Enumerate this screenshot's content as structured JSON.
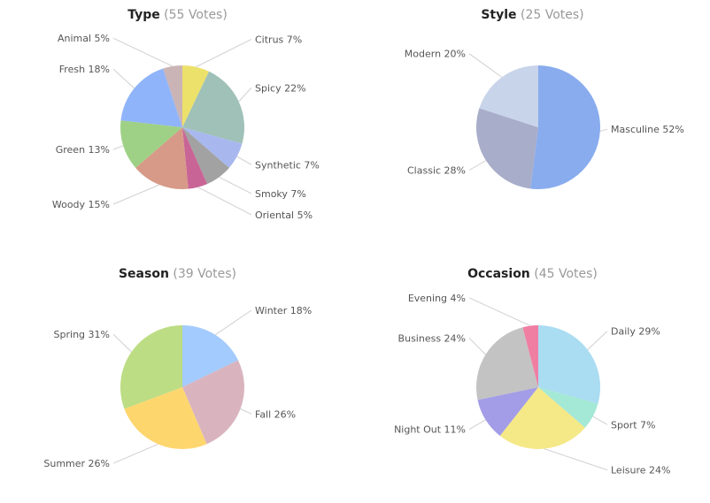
{
  "chart_data": [
    {
      "type": "pie",
      "title": "Type",
      "votes_label": "(55 Votes)",
      "slices": [
        {
          "label": "Citrus 7%",
          "value": 7,
          "color": "#ece16a"
        },
        {
          "label": "Spicy 22%",
          "value": 22,
          "color": "#9fc1b8"
        },
        {
          "label": "Synthetic 7%",
          "value": 7,
          "color": "#a8b8ef"
        },
        {
          "label": "Smoky 7%",
          "value": 7,
          "color": "#a2a2a2"
        },
        {
          "label": "Oriental 5%",
          "value": 5,
          "color": "#c96596"
        },
        {
          "label": "Woody 15%",
          "value": 15,
          "color": "#d79a88"
        },
        {
          "label": "Green 13%",
          "value": 13,
          "color": "#9ed185"
        },
        {
          "label": "Fresh 18%",
          "value": 18,
          "color": "#8fb4fa"
        },
        {
          "label": "Animal 5%",
          "value": 5,
          "color": "#cab4b5"
        }
      ]
    },
    {
      "type": "pie",
      "title": "Style",
      "votes_label": "(25 Votes)",
      "slices": [
        {
          "label": "Masculine 52%",
          "value": 52,
          "color": "#88acee"
        },
        {
          "label": "Classic 28%",
          "value": 28,
          "color": "#a8adc9"
        },
        {
          "label": "Modern 20%",
          "value": 20,
          "color": "#c8d4ea"
        }
      ]
    },
    {
      "type": "pie",
      "title": "Season",
      "votes_label": "(39 Votes)",
      "slices": [
        {
          "label": "Winter 18%",
          "value": 18,
          "color": "#a3cbfd"
        },
        {
          "label": "Fall 26%",
          "value": 26,
          "color": "#d9b4bf"
        },
        {
          "label": "Summer 26%",
          "value": 26,
          "color": "#fed66e"
        },
        {
          "label": "Spring 31%",
          "value": 31,
          "color": "#bcdd84"
        }
      ]
    },
    {
      "type": "pie",
      "title": "Occasion",
      "votes_label": "(45 Votes)",
      "slices": [
        {
          "label": "Daily 29%",
          "value": 29,
          "color": "#aadcf2"
        },
        {
          "label": "Sport 7%",
          "value": 7,
          "color": "#a4e8d6"
        },
        {
          "label": "Leisure 24%",
          "value": 24,
          "color": "#f5e887"
        },
        {
          "label": "Night Out 11%",
          "value": 11,
          "color": "#a39de7"
        },
        {
          "label": "Business 24%",
          "value": 24,
          "color": "#c3c3c3"
        },
        {
          "label": "Evening 4%",
          "value": 4,
          "color": "#f07ea3"
        }
      ]
    }
  ]
}
